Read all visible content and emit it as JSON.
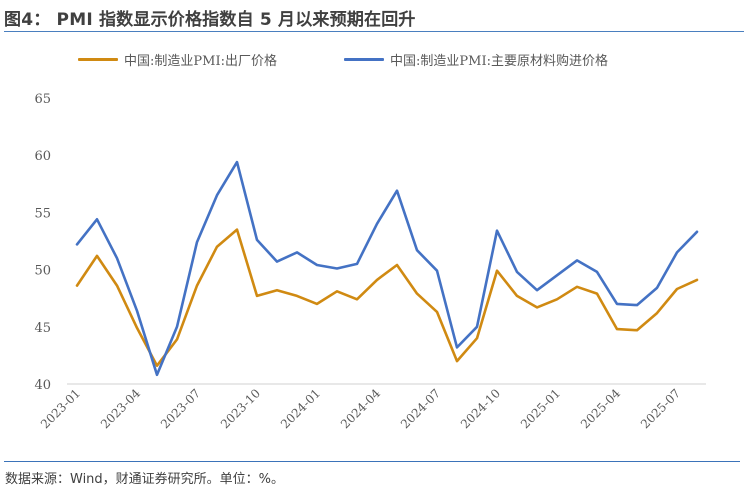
{
  "header": {
    "title": "图4： PMI 指数显示价格指数自 5 月以来预期在回升"
  },
  "footer": {
    "source": "数据来源：Wind，财通证券研究所。单位：%。"
  },
  "legend": [
    {
      "label": "中国:制造业PMI:出厂价格",
      "color": "#d08a12"
    },
    {
      "label": "中国:制造业PMI:主要原材料购进价格",
      "color": "#4472c4"
    }
  ],
  "chart_data": {
    "type": "line",
    "title": "PMI 指数显示价格指数自 5 月以来预期在回升",
    "xlabel": "",
    "ylabel": "%",
    "ylim": [
      40,
      65
    ],
    "yticks": [
      40,
      45,
      50,
      55,
      60,
      65
    ],
    "grid": false,
    "legend_position": "top",
    "x": [
      "2023-01",
      "2023-02",
      "2023-03",
      "2023-04",
      "2023-05",
      "2023-06",
      "2023-07",
      "2023-08",
      "2023-09",
      "2023-10",
      "2023-11",
      "2023-12",
      "2024-01",
      "2024-02",
      "2024-03",
      "2024-04",
      "2024-05",
      "2024-06",
      "2024-07",
      "2024-08",
      "2024-09",
      "2024-10",
      "2024-11",
      "2024-12",
      "2025-01",
      "2025-02",
      "2025-03",
      "2025-04",
      "2025-05",
      "2025-06",
      "2025-07",
      "2025-08"
    ],
    "xtick_labels": [
      "2023-01",
      "2023-04",
      "2023-07",
      "2023-10",
      "2024-01",
      "2024-04",
      "2024-07",
      "2024-10",
      "2025-01",
      "2025-04",
      "2025-07"
    ],
    "series": [
      {
        "name": "中国:制造业PMI:出厂价格",
        "color": "#d08a12",
        "values": [
          48.6,
          51.2,
          48.6,
          44.9,
          41.6,
          43.9,
          48.6,
          52.0,
          53.5,
          47.7,
          48.2,
          47.7,
          47.0,
          48.1,
          47.4,
          49.1,
          50.4,
          47.9,
          46.3,
          42.0,
          44.0,
          49.9,
          47.7,
          46.7,
          47.4,
          48.5,
          47.9,
          44.8,
          44.7,
          46.2,
          48.3,
          49.1
        ]
      },
      {
        "name": "中国:制造业PMI:主要原材料购进价格",
        "color": "#4472c4",
        "values": [
          52.2,
          54.4,
          51.0,
          46.4,
          40.8,
          45.0,
          52.4,
          56.5,
          59.4,
          52.6,
          50.7,
          51.5,
          50.4,
          50.1,
          50.5,
          54.0,
          56.9,
          51.7,
          49.9,
          43.2,
          45.0,
          53.4,
          49.8,
          48.2,
          49.5,
          50.8,
          49.8,
          47.0,
          46.9,
          48.4,
          51.5,
          53.3
        ]
      }
    ]
  }
}
